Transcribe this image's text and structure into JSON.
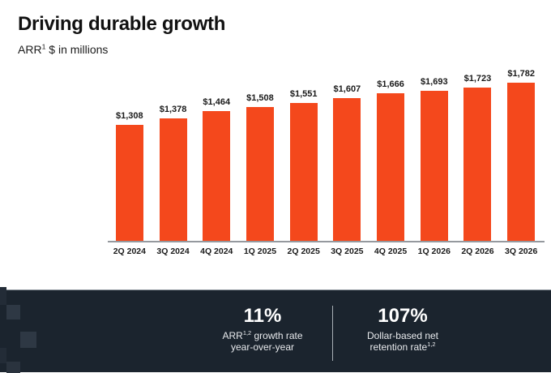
{
  "colors": {
    "bar": "#f4481c",
    "footer_bg": "#1b242e",
    "footer_text": "#ffffff",
    "title_text": "#111111",
    "axis_line": "#95999e"
  },
  "header": {
    "title": "Driving durable growth",
    "subtitle": {
      "text": "ARR",
      "sup": "1",
      "rest": " $ in millions"
    }
  },
  "chart_data": {
    "type": "bar",
    "title": "ARR $ in millions",
    "categories": [
      "2Q 2024",
      "3Q 2024",
      "4Q 2024",
      "1Q 2025",
      "2Q 2025",
      "3Q 2025",
      "4Q 2025",
      "1Q 2026",
      "2Q 2026",
      "3Q 2026"
    ],
    "values": [
      1308,
      1378,
      1464,
      1508,
      1551,
      1607,
      1666,
      1693,
      1723,
      1782
    ],
    "labels": [
      "$1,308",
      "$1,378",
      "$1,464",
      "$1,508",
      "$1,551",
      "$1,607",
      "$1,666",
      "$1,693",
      "$1,723",
      "$1,782"
    ],
    "xlabel": "",
    "ylabel": "ARR $ in millions",
    "ylim": [
      0,
      1800
    ],
    "grid": false,
    "legend": false,
    "bar_color": "#f4481c",
    "data_labels": true
  },
  "footer": {
    "stat1": {
      "value": "11%",
      "label1": "ARR",
      "label1_sup": "1,2",
      "label1_rest": " growth rate",
      "label2": "year-over-year"
    },
    "stat2": {
      "value": "107%",
      "label1": "Dollar-based net",
      "label2": "retention rate",
      "label2_sup": "1,2"
    }
  }
}
